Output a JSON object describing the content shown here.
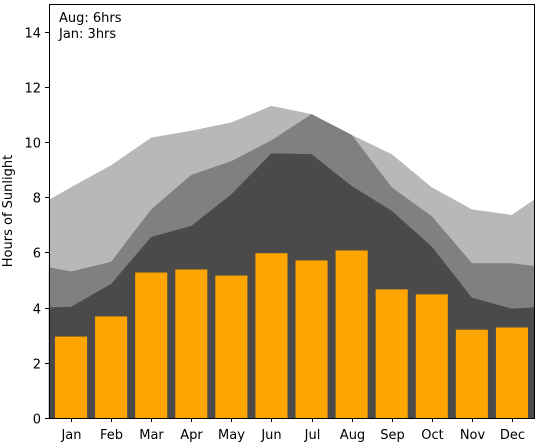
{
  "chart_data": {
    "type": "bar",
    "categories": [
      "Jan",
      "Feb",
      "Mar",
      "Apr",
      "May",
      "Jun",
      "Jul",
      "Aug",
      "Sep",
      "Oct",
      "Nov",
      "Dec"
    ],
    "bars": {
      "values": [
        2.95,
        3.68,
        5.27,
        5.38,
        5.16,
        5.97,
        5.71,
        6.07,
        4.66,
        4.48,
        3.2,
        3.28
      ],
      "color": "#FFA500"
    },
    "bands": [
      {
        "color": "#B8B8B8",
        "lower": [
          5.45,
          5.3,
          5.65,
          7.55,
          8.8,
          9.3,
          10.05,
          11.0,
          10.25,
          8.35,
          7.3,
          5.6,
          5.6,
          5.5
        ],
        "upper": [
          7.9,
          8.35,
          9.15,
          10.15,
          10.4,
          10.7,
          11.3,
          11.0,
          10.25,
          9.55,
          8.35,
          7.55,
          7.35,
          7.9
        ]
      },
      {
        "color": "#808080",
        "lower": [
          4.0,
          4.02,
          4.85,
          6.55,
          6.95,
          8.1,
          9.58,
          9.55,
          8.4,
          7.5,
          6.2,
          4.35,
          3.95,
          4.0
        ],
        "upper": [
          5.45,
          5.3,
          5.65,
          7.55,
          8.8,
          9.3,
          10.05,
          11.0,
          10.25,
          8.35,
          7.3,
          5.6,
          5.6,
          5.5
        ]
      },
      {
        "color": "#4A4A4A",
        "lower": [
          0,
          0,
          0,
          0,
          0,
          0,
          0,
          0,
          0,
          0,
          0,
          0,
          0,
          0
        ],
        "upper": [
          4.0,
          4.02,
          4.85,
          6.55,
          6.95,
          8.1,
          9.58,
          9.55,
          8.4,
          7.5,
          6.2,
          4.35,
          3.95,
          4.0
        ]
      }
    ],
    "band_x": [
      -0.55,
      0,
      1,
      2,
      3,
      4,
      5,
      6,
      7,
      8,
      9,
      10,
      11,
      11.55
    ],
    "xlim": [
      -0.55,
      11.55
    ],
    "ylim": [
      0,
      15
    ],
    "yticks": [
      0,
      2,
      4,
      6,
      8,
      10,
      12,
      14
    ],
    "ylabel": "Hours of Sunlight",
    "xlabel": "",
    "title": "",
    "annotations": [
      "Aug: 6hrs",
      "Jan: 3hrs"
    ],
    "grid": false
  }
}
